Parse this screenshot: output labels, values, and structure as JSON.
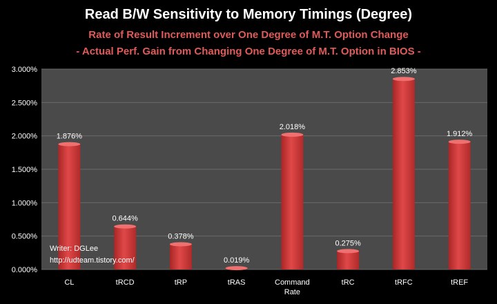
{
  "chart_data": {
    "type": "bar",
    "title": "Read B/W Sensitivity to Memory Timings (Degree)",
    "subtitles": [
      "Rate of Result Increment over One Degree of M.T. Option Change",
      "- Actual Perf. Gain from Changing One Degree of M.T. Option in BIOS -"
    ],
    "categories": [
      [
        "CL"
      ],
      [
        "tRCD"
      ],
      [
        "tRP"
      ],
      [
        "tRAS"
      ],
      [
        "Command",
        "Rate"
      ],
      [
        "tRC"
      ],
      [
        "tRFC"
      ],
      [
        "tREF"
      ]
    ],
    "values": [
      1.876,
      0.644,
      0.378,
      0.019,
      2.018,
      0.275,
      2.853,
      1.912
    ],
    "data_labels": [
      "1.876%",
      "0.644%",
      "0.378%",
      "0.019%",
      "2.018%",
      "0.275%",
      "2.853%",
      "1.912%"
    ],
    "yticks": [
      0,
      0.5,
      1.0,
      1.5,
      2.0,
      2.5,
      3.0
    ],
    "ytick_labels": [
      "0.000%",
      "0.500%",
      "1.000%",
      "1.500%",
      "2.000%",
      "2.500%",
      "3.000%"
    ],
    "ylim": [
      0,
      3.0
    ],
    "grid": true,
    "legend": "none",
    "bar_color": "#d63a3a",
    "plot_background": "#4a4a4a"
  },
  "annotation": {
    "line1": "Writer: DGLee",
    "line2": "http://udteam.tistory.com/"
  }
}
